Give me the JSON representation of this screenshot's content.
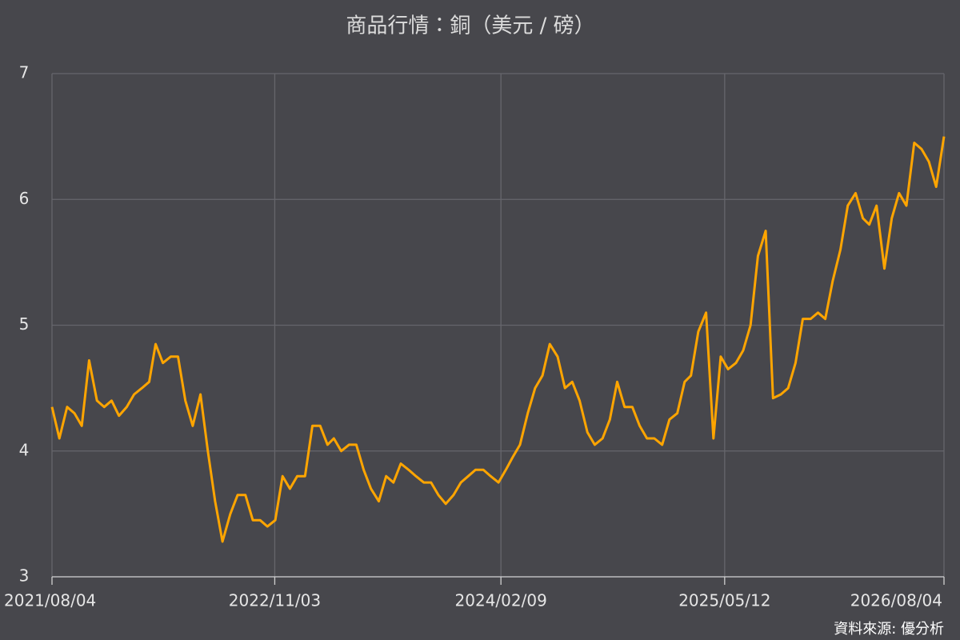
{
  "chart_data": {
    "type": "line",
    "title": "商品行情：銅（美元 / 磅）",
    "source": "資料來源: 優分析",
    "color": "#ffa500",
    "grid": true,
    "x": [
      "2021/08/04",
      "2021/08/19",
      "2021/09/04",
      "2021/09/19",
      "2021/10/04",
      "2021/10/19",
      "2021/11/04",
      "2021/11/19",
      "2021/12/04",
      "2021/12/19",
      "2022/01/04",
      "2022/01/19",
      "2022/02/04",
      "2022/02/19",
      "2022/03/04",
      "2022/03/19",
      "2022/04/04",
      "2022/04/19",
      "2022/05/04",
      "2022/05/19",
      "2022/06/04",
      "2022/06/19",
      "2022/07/04",
      "2022/07/19",
      "2022/08/04",
      "2022/08/19",
      "2022/09/04",
      "2022/09/19",
      "2022/10/04",
      "2022/10/19",
      "2022/11/04",
      "2022/11/19",
      "2022/12/04",
      "2022/12/19",
      "2023/01/04",
      "2023/01/19",
      "2023/02/04",
      "2023/02/19",
      "2023/03/04",
      "2023/03/19",
      "2023/04/04",
      "2023/04/19",
      "2023/05/04",
      "2023/05/19",
      "2023/06/04",
      "2023/06/19",
      "2023/07/04",
      "2023/07/19",
      "2023/08/04",
      "2023/08/19",
      "2023/09/04",
      "2023/09/19",
      "2023/10/04",
      "2023/10/19",
      "2023/11/04",
      "2023/11/19",
      "2023/12/04",
      "2023/12/19",
      "2024/01/04",
      "2024/01/19",
      "2024/02/04",
      "2024/02/19",
      "2024/03/04",
      "2024/03/19",
      "2024/04/04",
      "2024/04/19",
      "2024/05/04",
      "2024/05/19",
      "2024/06/04",
      "2024/06/19",
      "2024/07/04",
      "2024/07/19",
      "2024/08/04",
      "2024/08/19",
      "2024/09/04",
      "2024/09/19",
      "2024/10/04",
      "2024/10/19",
      "2024/11/04",
      "2024/11/19",
      "2024/12/04",
      "2024/12/19",
      "2025/01/04",
      "2025/01/19",
      "2025/02/04",
      "2025/02/19",
      "2025/03/04",
      "2025/03/19",
      "2025/04/04",
      "2025/04/19",
      "2025/05/04",
      "2025/05/19",
      "2025/06/04",
      "2025/06/19",
      "2025/07/04",
      "2025/07/19",
      "2025/08/04",
      "2025/08/19",
      "2025/09/04",
      "2025/09/19",
      "2025/10/04",
      "2025/10/19",
      "2025/11/04",
      "2025/11/19",
      "2025/12/04",
      "2025/12/19",
      "2026/01/04",
      "2026/01/19",
      "2026/02/04",
      "2026/02/19",
      "2026/03/04",
      "2026/03/19",
      "2026/04/04",
      "2026/04/19",
      "2026/05/04",
      "2026/05/19",
      "2026/06/04",
      "2026/06/19",
      "2026/07/04",
      "2026/07/19",
      "2026/08/04"
    ],
    "values": [
      4.35,
      4.1,
      4.35,
      4.3,
      4.2,
      4.72,
      4.4,
      4.35,
      4.4,
      4.28,
      4.35,
      4.45,
      4.5,
      4.55,
      4.85,
      4.7,
      4.75,
      4.75,
      4.4,
      4.2,
      4.45,
      4.0,
      3.6,
      3.28,
      3.5,
      3.65,
      3.65,
      3.45,
      3.45,
      3.4,
      3.45,
      3.8,
      3.7,
      3.8,
      3.8,
      4.2,
      4.2,
      4.05,
      4.1,
      4.0,
      4.05,
      4.05,
      3.85,
      3.7,
      3.6,
      3.8,
      3.75,
      3.9,
      3.85,
      3.8,
      3.75,
      3.75,
      3.65,
      3.58,
      3.65,
      3.75,
      3.8,
      3.85,
      3.85,
      3.8,
      3.75,
      3.85,
      3.95,
      4.05,
      4.3,
      4.5,
      4.6,
      4.85,
      4.75,
      4.5,
      4.55,
      4.4,
      4.15,
      4.05,
      4.1,
      4.25,
      4.55,
      4.35,
      4.35,
      4.2,
      4.1,
      4.1,
      4.05,
      4.25,
      4.3,
      4.55,
      4.6,
      4.95,
      5.1,
      4.1,
      4.75,
      4.65,
      4.7,
      4.8,
      5.0,
      5.55,
      5.75,
      4.42,
      4.45,
      4.5,
      4.7,
      5.05,
      5.05,
      5.1,
      5.05,
      5.35,
      5.6,
      5.95,
      6.05,
      5.85,
      5.8,
      5.95,
      5.45,
      5.85,
      6.05,
      5.95,
      6.45,
      6.4,
      6.3,
      6.1,
      6.5
    ],
    "xlim": [
      "2021/08/04",
      "2026/08/04"
    ],
    "xticks": [
      "2021/08/04",
      "2022/11/03",
      "2024/02/09",
      "2025/05/12",
      "2026/08/04"
    ],
    "ylim": [
      3,
      7
    ],
    "yticks": [
      3,
      4,
      5,
      6,
      7
    ]
  }
}
